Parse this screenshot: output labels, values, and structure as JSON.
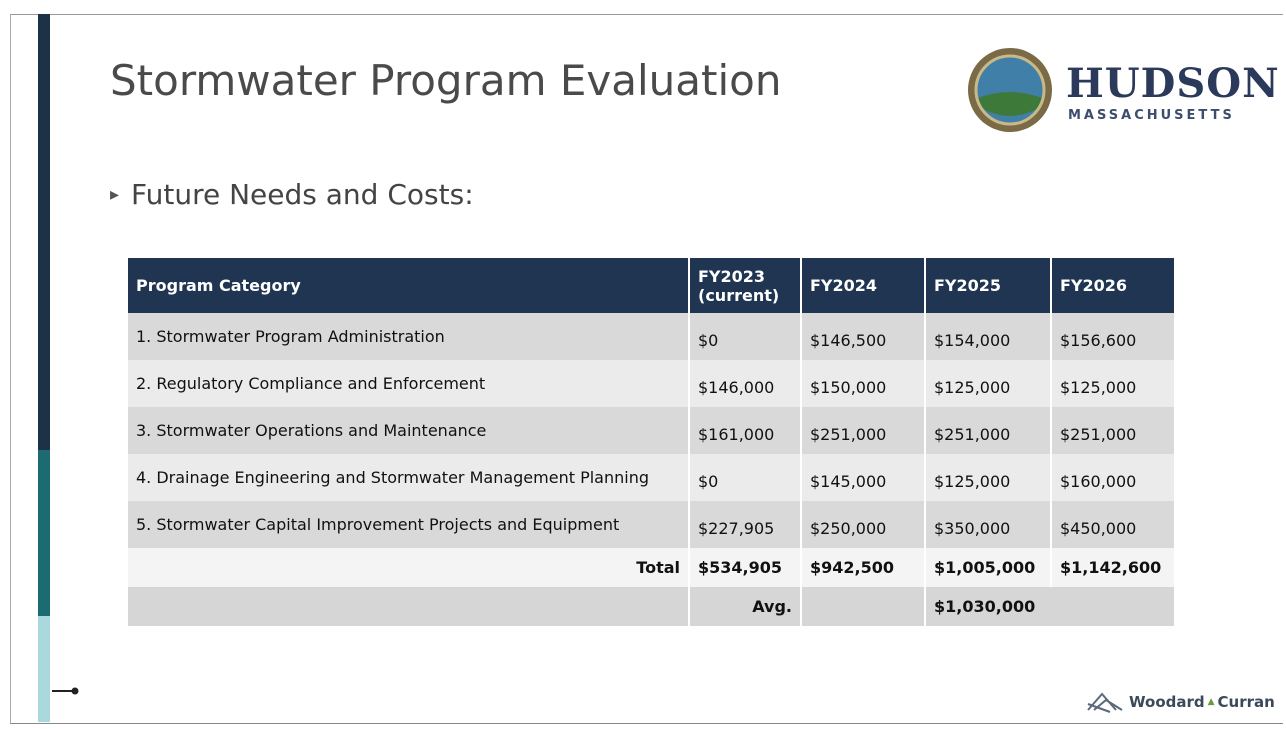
{
  "header": {
    "title": "Stormwater Program Evaluation",
    "logo": {
      "name": "HUDSON",
      "subtitle": "MASSACHUSETTS"
    }
  },
  "bullet": "Future Needs and Costs:",
  "table": {
    "columns": [
      "Program Category",
      "FY2023 (current)",
      "FY2024",
      "FY2025",
      "FY2026"
    ],
    "rows": [
      [
        "1. Stormwater Program Administration",
        "$0",
        "$146,500",
        "$154,000",
        "$156,600"
      ],
      [
        "2. Regulatory Compliance and Enforcement",
        "$146,000",
        "$150,000",
        "$125,000",
        "$125,000"
      ],
      [
        "3. Stormwater Operations and Maintenance",
        "$161,000",
        "$251,000",
        "$251,000",
        "$251,000"
      ],
      [
        "4. Drainage Engineering and Stormwater Management Planning",
        "$0",
        "$145,000",
        "$125,000",
        "$160,000"
      ],
      [
        "5. Stormwater Capital Improvement Projects and Equipment",
        "$227,905",
        "$250,000",
        "$350,000",
        "$450,000"
      ]
    ],
    "total": {
      "label": "Total",
      "values": [
        "$534,905",
        "$942,500",
        "$1,005,000",
        "$1,142,600"
      ]
    },
    "avg": {
      "label": "Avg.",
      "value": "$1,030,000"
    }
  },
  "footer": {
    "brand": "Woodard",
    "brand2": "Curran"
  }
}
